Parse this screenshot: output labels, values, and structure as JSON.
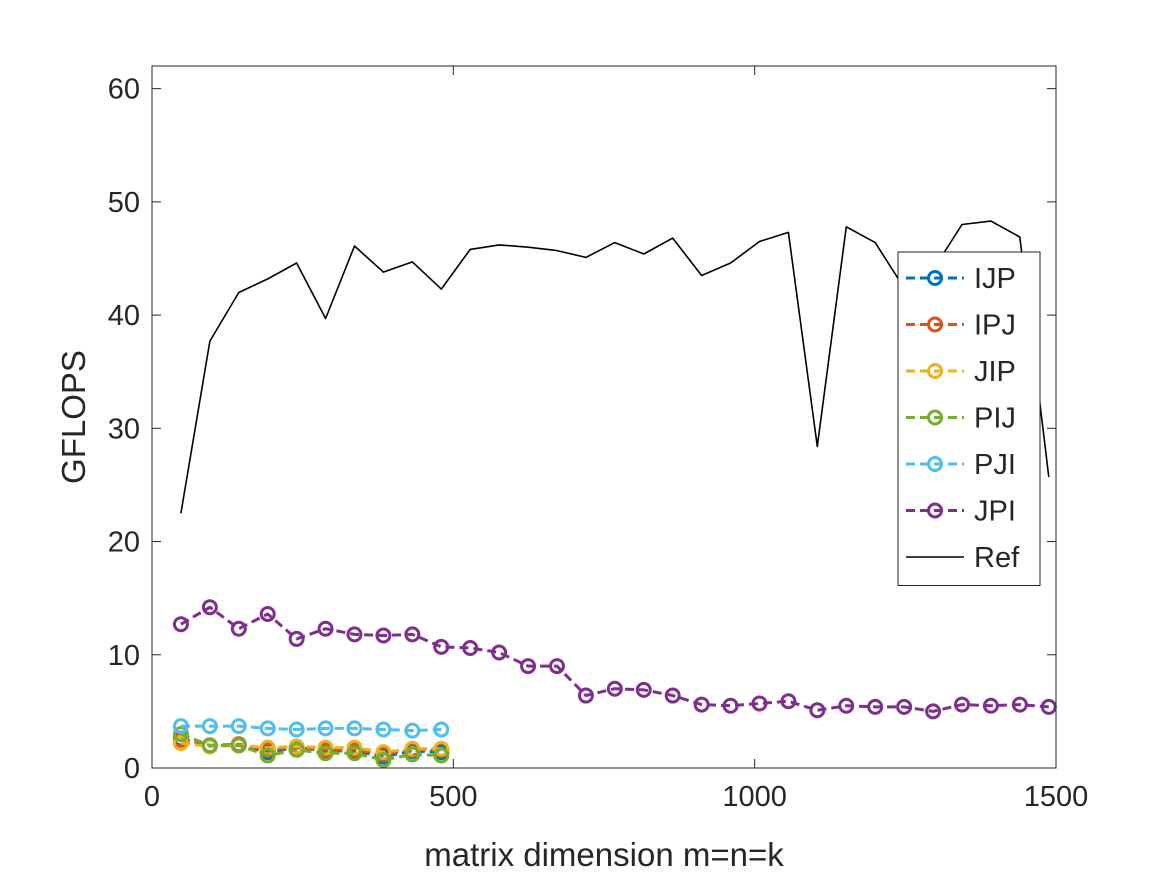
{
  "chart_data": {
    "type": "line",
    "xlabel": "matrix dimension m=n=k",
    "ylabel": "GFLOPS",
    "xlim": [
      0,
      1500
    ],
    "ylim": [
      0,
      62
    ],
    "xticks": [
      0,
      500,
      1000,
      1500
    ],
    "yticks": [
      0,
      10,
      20,
      30,
      40,
      50,
      60
    ],
    "grid": false,
    "legend_position": "right",
    "series": [
      {
        "name": "IJP",
        "color": "#0072BD",
        "marker": "circle",
        "linestyle": "dashed",
        "x": [
          48,
          96,
          144,
          192,
          240,
          288,
          336,
          384,
          432,
          480
        ],
        "y": [
          2.6,
          2.0,
          2.0,
          1.4,
          1.8,
          1.5,
          1.5,
          1.0,
          1.5,
          1.4
        ]
      },
      {
        "name": "IPJ",
        "color": "#D95319",
        "marker": "circle",
        "linestyle": "dashed",
        "x": [
          48,
          96,
          144,
          192,
          240,
          288,
          336,
          384,
          432,
          480
        ],
        "y": [
          2.5,
          2.0,
          2.1,
          1.6,
          1.8,
          1.6,
          1.6,
          1.2,
          1.6,
          1.6
        ]
      },
      {
        "name": "JIP",
        "color": "#EDB120",
        "marker": "circle",
        "linestyle": "dashed",
        "x": [
          48,
          96,
          144,
          192,
          240,
          288,
          336,
          384,
          432,
          480
        ],
        "y": [
          2.2,
          1.9,
          2.0,
          1.8,
          1.9,
          1.8,
          1.8,
          1.4,
          1.7,
          1.7
        ]
      },
      {
        "name": "PIJ",
        "color": "#77AC30",
        "marker": "circle",
        "linestyle": "dashed",
        "x": [
          48,
          96,
          144,
          192,
          240,
          288,
          336,
          384,
          432,
          480
        ],
        "y": [
          3.0,
          2.0,
          2.0,
          1.1,
          1.6,
          1.3,
          1.3,
          0.7,
          1.2,
          1.1
        ]
      },
      {
        "name": "PJI",
        "color": "#4DBEEE",
        "marker": "circle",
        "linestyle": "dashed",
        "x": [
          48,
          96,
          144,
          192,
          240,
          288,
          336,
          384,
          432,
          480
        ],
        "y": [
          3.7,
          3.7,
          3.7,
          3.5,
          3.4,
          3.5,
          3.5,
          3.4,
          3.3,
          3.4
        ]
      },
      {
        "name": "JPI",
        "color": "#7E2F8E",
        "marker": "circle",
        "linestyle": "dashed",
        "x": [
          48,
          96,
          144,
          192,
          240,
          288,
          336,
          384,
          432,
          480,
          528,
          576,
          624,
          672,
          720,
          768,
          816,
          864,
          912,
          960,
          1008,
          1056,
          1104,
          1152,
          1200,
          1248,
          1296,
          1344,
          1392,
          1440,
          1488
        ],
        "y": [
          12.7,
          14.2,
          12.3,
          13.6,
          11.4,
          12.3,
          11.8,
          11.7,
          11.8,
          10.7,
          10.6,
          10.2,
          9.0,
          9.0,
          6.4,
          7.0,
          6.9,
          6.4,
          5.6,
          5.5,
          5.7,
          5.9,
          5.1,
          5.5,
          5.4,
          5.4,
          5.0,
          5.6,
          5.5,
          5.6,
          5.4
        ]
      },
      {
        "name": "Ref",
        "color": "#000000",
        "marker": "none",
        "linestyle": "solid",
        "x": [
          48,
          96,
          144,
          192,
          240,
          288,
          336,
          384,
          432,
          480,
          528,
          576,
          624,
          672,
          720,
          768,
          816,
          864,
          912,
          960,
          1008,
          1056,
          1104,
          1152,
          1200,
          1248,
          1296,
          1344,
          1392,
          1440,
          1488
        ],
        "y": [
          22.5,
          37.7,
          42.0,
          43.2,
          44.6,
          39.7,
          46.1,
          43.8,
          44.7,
          42.3,
          45.8,
          46.2,
          46.0,
          45.7,
          45.1,
          46.4,
          45.4,
          46.8,
          43.5,
          44.6,
          46.5,
          47.3,
          28.4,
          47.8,
          46.4,
          42.4,
          44.0,
          48.0,
          48.3,
          46.9,
          25.7
        ]
      }
    ]
  }
}
